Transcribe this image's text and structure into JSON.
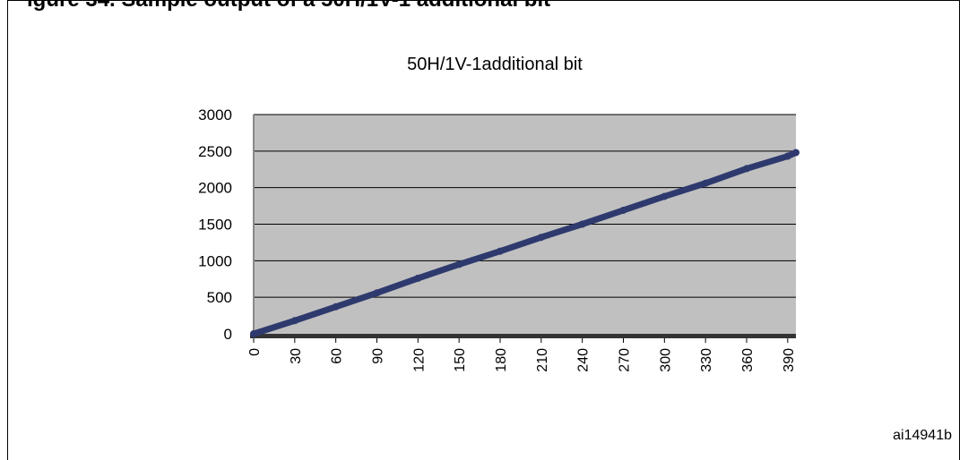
{
  "figure": {
    "caption_fragment": "igure 34. Sample output of a 50H/1V-1 additional bit",
    "reference": "ai14941b"
  },
  "chart_data": {
    "type": "line",
    "title": "50H/1V-1additional bit",
    "xlabel": "",
    "ylabel": "",
    "x_ticks": [
      "0",
      "30",
      "60",
      "90",
      "120",
      "150",
      "180",
      "210",
      "240",
      "270",
      "300",
      "330",
      "360",
      "390"
    ],
    "y_ticks": [
      "0",
      "500",
      "1000",
      "1500",
      "2000",
      "2500",
      "3000"
    ],
    "xlim": [
      0,
      396
    ],
    "ylim": [
      0,
      3000
    ],
    "grid": true,
    "series": [
      {
        "x": [
          0,
          30,
          60,
          90,
          120,
          150,
          180,
          210,
          240,
          270,
          300,
          330,
          360,
          390,
          396
        ],
        "y": [
          0,
          180,
          370,
          560,
          760,
          950,
          1130,
          1320,
          1500,
          1690,
          1880,
          2060,
          2260,
          2430,
          2480
        ],
        "color": "#2e3a6e"
      }
    ],
    "plot_background": "#c0c0c0"
  }
}
